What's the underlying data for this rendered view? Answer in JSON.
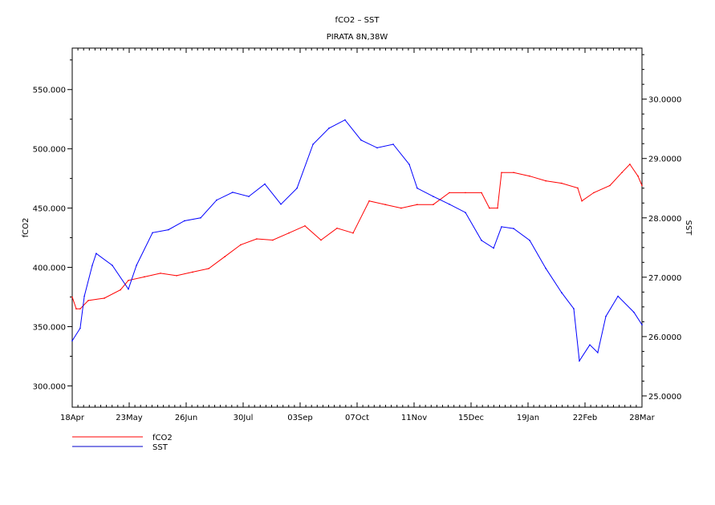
{
  "chart_data": {
    "type": "line",
    "title": "fCO2  –  SST",
    "subtitle": "PIRATA 8N,38W",
    "xlabel": "",
    "ylabel": "fCO2",
    "ylabel_right": "SST",
    "xlim": [
      0,
      344
    ],
    "ylim": [
      282,
      585
    ],
    "ylim_right": [
      24.81,
      30.86
    ],
    "x_unit": "days since 18Apr",
    "x_tick_labels": [
      "18Apr",
      "23May",
      "26Jun",
      "30Jul",
      "03Sep",
      "07Oct",
      "11Nov",
      "15Dec",
      "19Jan",
      "22Feb",
      "28Mar"
    ],
    "y_ticks": [
      300,
      350,
      400,
      450,
      500,
      550
    ],
    "y_tick_labels": [
      "300.000",
      "350.000",
      "400.000",
      "450.000",
      "500.000",
      "550.000"
    ],
    "y_right_ticks": [
      25,
      26,
      27,
      28,
      29,
      30
    ],
    "y_right_tick_labels": [
      "25.0000",
      "26.0000",
      "27.0000",
      "28.0000",
      "29.0000",
      "30.0000"
    ],
    "legend_position": "bottom-left",
    "series": [
      {
        "name": "fCO2",
        "axis": "left",
        "color": "#ff0000",
        "x": [
          0,
          2.4,
          4.8,
          9.7,
          19.4,
          29.1,
          33.9,
          43.6,
          53.3,
          63,
          72.7,
          82.4,
          92.1,
          101.7,
          111.4,
          121.1,
          130.8,
          140.5,
          150.2,
          159.9,
          169.6,
          179.3,
          189,
          198.6,
          208.3,
          218,
          227.7,
          237.4,
          247.1,
          251.9,
          256.8,
          259.2,
          266.5,
          276.2,
          285.9,
          295.5,
          305.2,
          307.7,
          314.9,
          324.6,
          331.9,
          336.7,
          341.6,
          344
        ],
        "y": [
          375,
          365,
          365,
          372,
          374,
          381,
          389,
          392,
          395,
          393,
          396,
          399,
          409,
          419,
          424,
          423,
          429,
          435,
          423,
          433,
          429,
          456,
          453,
          450,
          453,
          453,
          463,
          463,
          463,
          450,
          450,
          480,
          480,
          477,
          473,
          471,
          467,
          456,
          463,
          469,
          480,
          487,
          477,
          469
        ]
      },
      {
        "name": "SST",
        "axis": "right",
        "color": "#0000ff",
        "x": [
          0,
          4.8,
          7.3,
          12.1,
          14.5,
          24.2,
          33.9,
          38.8,
          48.5,
          58.1,
          67.8,
          77.5,
          87.2,
          96.9,
          106.6,
          116.3,
          126,
          135.7,
          145.4,
          155,
          164.7,
          174.4,
          184.1,
          193.8,
          203.5,
          208.3,
          218,
          227.7,
          237.4,
          247.1,
          254.4,
          259.2,
          266.5,
          276.2,
          285.9,
          295.5,
          302.8,
          306.2,
          312.5,
          317.3,
          322.2,
          329.5,
          339.1,
          344
        ],
        "y": [
          25.93,
          26.14,
          26.68,
          27.2,
          27.4,
          27.2,
          26.8,
          27.2,
          27.75,
          27.8,
          27.95,
          28.0,
          28.3,
          28.43,
          28.36,
          28.57,
          28.23,
          28.5,
          29.24,
          29.51,
          29.65,
          29.31,
          29.18,
          29.24,
          28.9,
          28.5,
          28.36,
          28.23,
          28.09,
          27.62,
          27.49,
          27.85,
          27.82,
          27.62,
          27.15,
          26.74,
          26.47,
          25.59,
          25.86,
          25.73,
          26.34,
          26.68,
          26.41,
          26.2
        ]
      }
    ]
  }
}
